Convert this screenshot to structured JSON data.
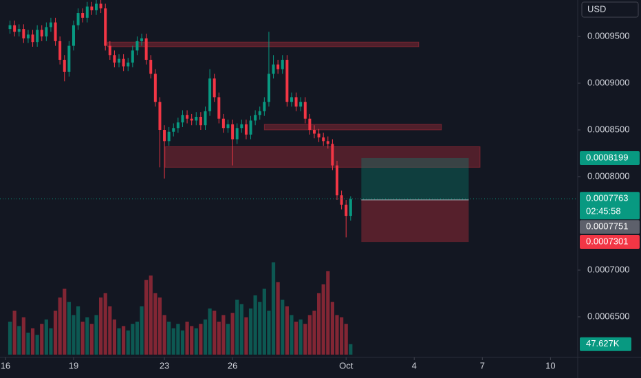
{
  "chart_data": {
    "type": "candlestick",
    "currency": "USD",
    "x": [
      16.2,
      16.4,
      16.6,
      16.8,
      17,
      17.2,
      17.4,
      17.6,
      17.8,
      18,
      18.2,
      18.4,
      18.6,
      18.8,
      19,
      19.2,
      19.4,
      19.6,
      19.8,
      20,
      20.2,
      20.4,
      20.6,
      20.8,
      21,
      21.2,
      21.4,
      21.6,
      21.8,
      22,
      22.2,
      22.4,
      22.6,
      22.8,
      23,
      23.2,
      23.4,
      23.6,
      23.8,
      24,
      24.2,
      24.4,
      24.6,
      24.8,
      25,
      25.2,
      25.4,
      25.6,
      25.8,
      26,
      26.2,
      26.4,
      26.6,
      26.8,
      27,
      27.2,
      27.4,
      27.6,
      27.8,
      28,
      28.2,
      28.4,
      28.6,
      28.8,
      29,
      29.2,
      29.4,
      29.6,
      29.8,
      30,
      30.2,
      30.4,
      30.6,
      30.8,
      31,
      31.2
    ],
    "open": [
      0.000958,
      0.000962,
      0.000955,
      0.000958,
      0.000948,
      0.000952,
      0.000944,
      0.000957,
      0.00095,
      0.00096,
      0.000965,
      0.000945,
      0.000925,
      0.000912,
      0.00094,
      0.000962,
      0.000975,
      0.00097,
      0.000982,
      0.000978,
      0.000985,
      0.00098,
      0.00094,
      0.00093,
      0.000922,
      0.000926,
      0.000918,
      0.000922,
      0.000935,
      0.000945,
      0.000948,
      0.000925,
      0.00091,
      0.00088,
      0.00085,
      0.000838,
      0.000848,
      0.000852,
      0.000858,
      0.000866,
      0.000862,
      0.00086,
      0.000864,
      0.000855,
      0.00087,
      0.000905,
      0.000885,
      0.000862,
      0.000852,
      0.000856,
      0.00084,
      0.000852,
      0.000856,
      0.000845,
      0.00086,
      0.000866,
      0.00087,
      0.00088,
      0.00091,
      0.00092,
      0.000915,
      0.000925,
      0.00088,
      0.000885,
      0.000875,
      0.00088,
      0.000862,
      0.00085,
      0.000846,
      0.000842,
      0.000838,
      0.000835,
      0.000812,
      0.00078,
      0.00077,
      0.000758
    ],
    "high": [
      0.000967,
      0.000967,
      0.000963,
      0.000963,
      0.000957,
      0.000957,
      0.000962,
      0.000962,
      0.000965,
      0.00097,
      0.00097,
      0.00095,
      0.00093,
      0.000945,
      0.000967,
      0.00098,
      0.00098,
      0.000987,
      0.000987,
      0.000989,
      0.000989,
      0.000985,
      0.000945,
      0.000935,
      0.000931,
      0.000931,
      0.000927,
      0.00094,
      0.00095,
      0.000953,
      0.000953,
      0.00093,
      0.000915,
      0.000885,
      0.000855,
      0.000853,
      0.000857,
      0.000863,
      0.000871,
      0.000871,
      0.000867,
      0.000869,
      0.000869,
      0.000875,
      0.000915,
      0.00091,
      0.00089,
      0.000867,
      0.000861,
      0.000861,
      0.000857,
      0.000861,
      0.000861,
      0.000865,
      0.000871,
      0.000875,
      0.000885,
      0.000955,
      0.00093,
      0.000925,
      0.00093,
      0.00093,
      0.00089,
      0.00089,
      0.000885,
      0.000885,
      0.000867,
      0.000855,
      0.000851,
      0.000847,
      0.000843,
      0.00084,
      0.000817,
      0.000785,
      0.000775,
      0.000779
    ],
    "low": [
      0.000953,
      0.00095,
      0.00095,
      0.000943,
      0.000943,
      0.000939,
      0.000939,
      0.000945,
      0.000945,
      0.000955,
      0.00094,
      0.00092,
      0.000902,
      0.000907,
      0.000935,
      0.000957,
      0.000965,
      0.000965,
      0.000973,
      0.000973,
      0.000975,
      0.000935,
      0.000925,
      0.000917,
      0.000917,
      0.000913,
      0.000913,
      0.000917,
      0.00093,
      0.00094,
      0.00092,
      0.000905,
      0.000875,
      0.00081,
      0.000798,
      0.000833,
      0.000843,
      0.000847,
      0.000853,
      0.000857,
      0.000855,
      0.000855,
      0.00085,
      0.00085,
      0.000865,
      0.00088,
      0.000857,
      0.000847,
      0.000847,
      0.000812,
      0.000835,
      0.000847,
      0.00084,
      0.00084,
      0.000855,
      0.000861,
      0.000865,
      0.000875,
      0.000905,
      0.00091,
      0.00091,
      0.000875,
      0.000875,
      0.00087,
      0.00087,
      0.000857,
      0.000845,
      0.000841,
      0.000837,
      0.000833,
      0.00083,
      0.000807,
      0.000775,
      0.000765,
      0.000735,
      0.000753
    ],
    "close": [
      0.000962,
      0.000955,
      0.000958,
      0.000948,
      0.000952,
      0.000944,
      0.000957,
      0.00095,
      0.00096,
      0.000965,
      0.000945,
      0.000925,
      0.000912,
      0.00094,
      0.000962,
      0.000975,
      0.00097,
      0.000982,
      0.000978,
      0.000985,
      0.00098,
      0.00094,
      0.00093,
      0.000922,
      0.000926,
      0.000918,
      0.000922,
      0.000935,
      0.000945,
      0.000948,
      0.000925,
      0.00091,
      0.00088,
      0.00085,
      0.000838,
      0.000848,
      0.000852,
      0.000858,
      0.000866,
      0.000862,
      0.00086,
      0.000864,
      0.000855,
      0.00087,
      0.000905,
      0.000885,
      0.000862,
      0.000852,
      0.000856,
      0.00084,
      0.000852,
      0.000856,
      0.000845,
      0.00086,
      0.000866,
      0.00087,
      0.00088,
      0.00091,
      0.00092,
      0.000915,
      0.000925,
      0.00088,
      0.000885,
      0.000875,
      0.00088,
      0.000862,
      0.00085,
      0.000846,
      0.000842,
      0.000838,
      0.000835,
      0.000812,
      0.00078,
      0.00077,
      0.000758,
      0.000776
    ],
    "volume": [
      150000,
      200000,
      130000,
      170000,
      100000,
      120000,
      90000,
      140000,
      160000,
      120000,
      200000,
      260000,
      300000,
      240000,
      180000,
      220000,
      150000,
      170000,
      140000,
      180000,
      260000,
      280000,
      220000,
      160000,
      120000,
      130000,
      110000,
      140000,
      150000,
      220000,
      340000,
      360000,
      280000,
      260000,
      180000,
      150000,
      120000,
      140000,
      110000,
      150000,
      130000,
      120000,
      140000,
      160000,
      210000,
      200000,
      150000,
      180000,
      140000,
      190000,
      250000,
      230000,
      170000,
      210000,
      270000,
      240000,
      300000,
      200000,
      420000,
      330000,
      250000,
      220000,
      180000,
      150000,
      160000,
      140000,
      180000,
      200000,
      280000,
      320000,
      380000,
      240000,
      180000,
      170000,
      140000,
      47627
    ],
    "volume_label": "47.627K",
    "volume_lim": [
      0,
      500000
    ],
    "up_color": "#089981",
    "down_color": "#f23645",
    "xlim": [
      15.76,
      41.2
    ],
    "xticks": [
      16,
      19,
      23,
      26,
      {
        "value": 31,
        "label": "Oct"
      },
      {
        "value": 34,
        "label": "4"
      },
      {
        "value": 37,
        "label": "7"
      },
      {
        "value": 40,
        "label": "10"
      }
    ],
    "ylim": [
      0.0006066,
      0.000989
    ],
    "yticks": [
      {
        "value": 0.00095,
        "label": "0.0009500"
      },
      {
        "value": 0.0009,
        "label": "0.0009000"
      },
      {
        "value": 0.00085,
        "label": "0.0008500"
      },
      {
        "value": 0.0008,
        "label": "0.0008000"
      },
      {
        "value": 0.0007,
        "label": "0.0007000"
      },
      {
        "value": 0.00065,
        "label": "0.0006500"
      }
    ],
    "grid": false,
    "zones": [
      {
        "x": [
          20.5,
          34.2
        ],
        "y": [
          0.000939,
          0.000944
        ]
      },
      {
        "x": [
          27.4,
          35.2
        ],
        "y": [
          0.00085,
          0.000856
        ]
      },
      {
        "x": [
          23.03,
          36.9
        ],
        "y": [
          0.00081,
          0.000832
        ]
      }
    ],
    "position": {
      "x": [
        31.67,
        36.4
      ],
      "target": 0.0008199,
      "entry": 0.0007751,
      "stop": 0.0007301
    },
    "price_labels": [
      {
        "value": 0.0008199,
        "color": "#089981"
      },
      {
        "value": 0.0007763,
        "color": "#089981"
      },
      {
        "value": 0.0007751,
        "color": "#5d606b"
      },
      {
        "value": 0.0007301,
        "color": "#f23645"
      }
    ],
    "countdown": "02:45:58"
  }
}
